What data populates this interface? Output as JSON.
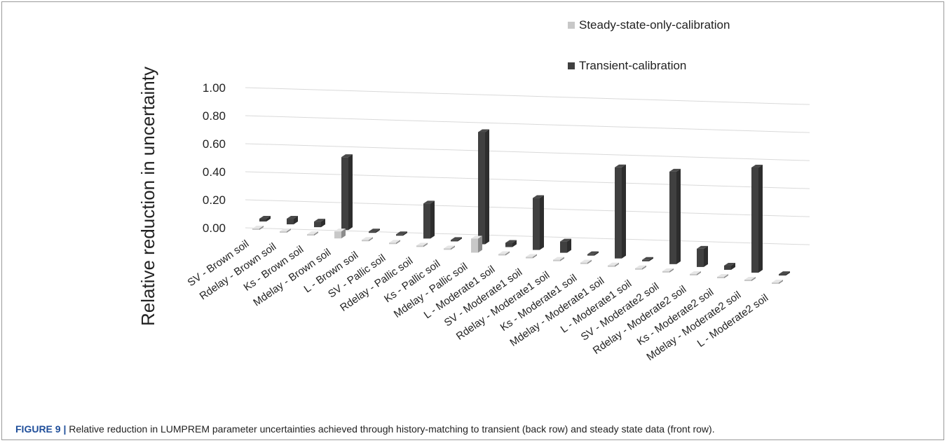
{
  "chart_data": {
    "type": "bar3d",
    "y_label": "Relative reduction in uncertainty",
    "categories": [
      "SV - Brown soil",
      "Rdelay - Brown soil",
      "Ks - Brown soil",
      "Mdelay - Brown soil",
      "L - Brown soil",
      "SV - Pallic soil",
      "Rdelay - Pallic soil",
      "Ks - Pallic soil",
      "Mdelay - Pallic soil",
      "L - Moderate1 soil",
      "SV - Moderate1 soil",
      "Rdelay - Moderate1 soil",
      "Ks - Moderate1 soil",
      "Mdelay - Moderate1 soil",
      "L - Moderate1 soil",
      "SV - Moderate2 soil",
      "Rdelay - Moderate2 soil",
      "Ks - Moderate2 soil",
      "Mdelay - Moderate2 soil",
      "L - Moderate2 soil"
    ],
    "series": [
      {
        "name": "Steady-state-only-calibration",
        "color": "#c8c8c8",
        "values": [
          0.01,
          0.01,
          0.01,
          0.05,
          0.01,
          0.01,
          0.01,
          0.01,
          0.1,
          0.01,
          0.01,
          0.01,
          0.01,
          0.01,
          0.01,
          0.01,
          0.01,
          0.01,
          0.01,
          0.01
        ]
      },
      {
        "name": "Transient-calibration",
        "color": "#404040",
        "values": [
          0.02,
          0.04,
          0.04,
          0.52,
          0.01,
          0.01,
          0.25,
          0.01,
          0.8,
          0.03,
          0.37,
          0.08,
          0.01,
          0.65,
          0.01,
          0.66,
          0.13,
          0.03,
          0.75,
          0.01
        ]
      }
    ],
    "ylim": [
      0,
      1
    ],
    "yticks": [
      {
        "value": 0,
        "label": "0.00"
      },
      {
        "value": 0.2,
        "label": "0.20"
      },
      {
        "value": 0.4,
        "label": "0.40"
      },
      {
        "value": 0.6,
        "label": "0.60"
      },
      {
        "value": 0.8,
        "label": "0.80"
      },
      {
        "value": 1,
        "label": "1.00"
      }
    ],
    "grid": true
  },
  "caption": {
    "label": "FIGURE 9 |",
    "text": "Relative reduction in LUMPREM parameter uncertainties achieved through history-matching to transient (back row) and steady state data (front row)."
  }
}
